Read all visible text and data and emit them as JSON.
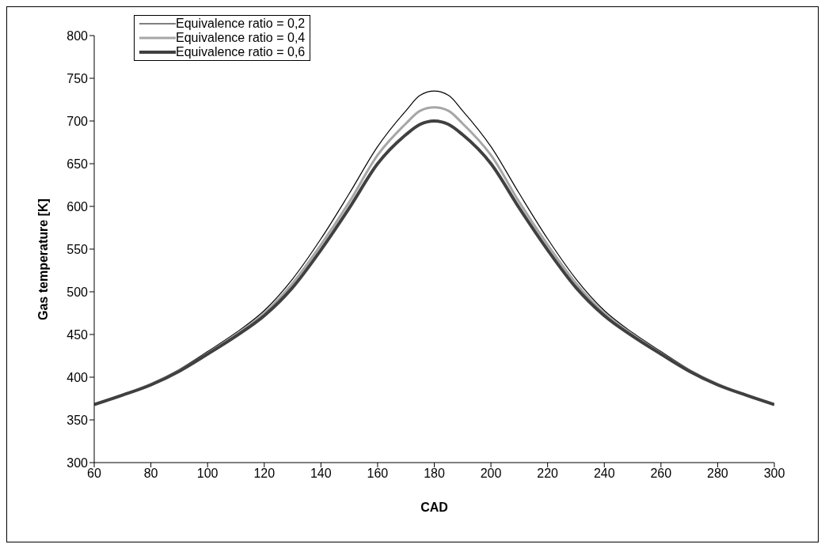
{
  "chart_data": {
    "type": "line",
    "xlabel": "CAD",
    "ylabel": "Gas temperature [K]",
    "x": [
      60,
      70,
      80,
      90,
      100,
      110,
      120,
      130,
      140,
      150,
      160,
      170,
      175,
      180,
      185,
      190,
      200,
      210,
      220,
      230,
      240,
      250,
      260,
      270,
      280,
      290,
      300
    ],
    "series": [
      {
        "name": "Equivalence ratio = 0,2",
        "color": "#000000",
        "values": [
          368,
          379,
          392,
          409,
          430,
          452,
          478,
          515,
          562,
          615,
          670,
          712,
          730,
          735,
          730,
          712,
          670,
          615,
          562,
          515,
          478,
          452,
          430,
          409,
          392,
          379,
          368
        ]
      },
      {
        "name": "Equivalence ratio = 0,4",
        "color": "#a6a6a6",
        "values": [
          368,
          379,
          392,
          408,
          428,
          450,
          475,
          510,
          555,
          605,
          660,
          697,
          712,
          716,
          712,
          697,
          660,
          605,
          555,
          510,
          475,
          450,
          428,
          408,
          392,
          379,
          368
        ]
      },
      {
        "name": "Equivalence ratio = 0,6",
        "color": "#404040",
        "values": [
          368,
          379,
          391,
          407,
          427,
          448,
          472,
          505,
          549,
          598,
          650,
          684,
          696,
          700,
          696,
          684,
          650,
          598,
          549,
          505,
          472,
          448,
          427,
          407,
          391,
          379,
          368
        ]
      }
    ],
    "xlim": [
      60,
      300
    ],
    "xticks": [
      60,
      80,
      100,
      120,
      140,
      160,
      180,
      200,
      220,
      240,
      260,
      280,
      300
    ],
    "ylim": [
      300,
      800
    ],
    "yticks": [
      300,
      350,
      400,
      450,
      500,
      550,
      600,
      650,
      700,
      750,
      800
    ],
    "grid": false,
    "legend": "top left",
    "marker": "none",
    "line_style": "solid"
  }
}
